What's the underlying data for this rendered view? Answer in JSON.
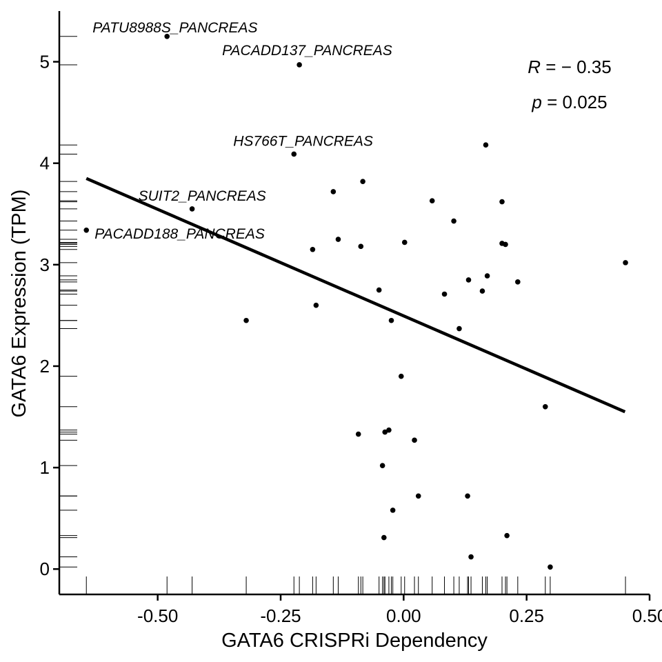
{
  "chart_data": {
    "type": "scatter",
    "xlabel": "GATA6 CRISPRi Dependency",
    "ylabel": "GATA6 Expression (TPM)",
    "xlim": [
      -0.7,
      0.5
    ],
    "ylim": [
      -0.25,
      5.5
    ],
    "x_ticks": [
      -0.5,
      -0.25,
      0.0,
      0.25,
      0.5
    ],
    "x_tick_labels": [
      "-0.50",
      "-0.25",
      "0.00",
      "0.25",
      "0.50"
    ],
    "y_ticks": [
      0,
      1,
      2,
      3,
      4,
      5
    ],
    "y_tick_labels": [
      "0",
      "1",
      "2",
      "3",
      "4",
      "5"
    ],
    "stats": {
      "r_label": "R",
      "r_value": " = − 0.35",
      "p_label": "p",
      "p_value": " = 0.025"
    },
    "regression": {
      "x": [
        -0.645,
        0.45
      ],
      "y": [
        3.85,
        1.55
      ]
    },
    "rug": {
      "x": true,
      "y": true
    },
    "points": [
      {
        "x": -0.481,
        "y": 5.25,
        "label": "PATU8988S_PANCREAS"
      },
      {
        "x": -0.212,
        "y": 4.97,
        "label": "PACADD137_PANCREAS"
      },
      {
        "x": -0.223,
        "y": 4.09,
        "label": "HS766T_PANCREAS"
      },
      {
        "x": -0.43,
        "y": 3.55,
        "label": "SUIT2_PANCREAS"
      },
      {
        "x": -0.645,
        "y": 3.34,
        "label": "PACADD188_PANCREAS"
      },
      {
        "x": -0.32,
        "y": 2.45
      },
      {
        "x": -0.185,
        "y": 3.15
      },
      {
        "x": -0.178,
        "y": 2.6
      },
      {
        "x": -0.143,
        "y": 3.72
      },
      {
        "x": -0.133,
        "y": 3.25
      },
      {
        "x": -0.092,
        "y": 1.33
      },
      {
        "x": -0.087,
        "y": 3.18
      },
      {
        "x": -0.083,
        "y": 3.82
      },
      {
        "x": -0.05,
        "y": 2.75
      },
      {
        "x": -0.043,
        "y": 1.02
      },
      {
        "x": -0.04,
        "y": 0.31
      },
      {
        "x": -0.038,
        "y": 1.35
      },
      {
        "x": -0.03,
        "y": 1.37
      },
      {
        "x": -0.025,
        "y": 2.45
      },
      {
        "x": -0.022,
        "y": 0.58
      },
      {
        "x": -0.005,
        "y": 1.9
      },
      {
        "x": 0.002,
        "y": 3.22
      },
      {
        "x": 0.022,
        "y": 1.27
      },
      {
        "x": 0.03,
        "y": 0.72
      },
      {
        "x": 0.058,
        "y": 3.63
      },
      {
        "x": 0.083,
        "y": 2.71
      },
      {
        "x": 0.102,
        "y": 3.43
      },
      {
        "x": 0.113,
        "y": 2.37
      },
      {
        "x": 0.13,
        "y": 0.72
      },
      {
        "x": 0.132,
        "y": 2.85
      },
      {
        "x": 0.137,
        "y": 0.12
      },
      {
        "x": 0.16,
        "y": 2.74
      },
      {
        "x": 0.167,
        "y": 4.18
      },
      {
        "x": 0.17,
        "y": 2.89
      },
      {
        "x": 0.2,
        "y": 3.62
      },
      {
        "x": 0.2,
        "y": 3.21
      },
      {
        "x": 0.207,
        "y": 3.2
      },
      {
        "x": 0.21,
        "y": 0.33
      },
      {
        "x": 0.232,
        "y": 2.83
      },
      {
        "x": 0.288,
        "y": 1.6
      },
      {
        "x": 0.298,
        "y": 0.02
      },
      {
        "x": 0.451,
        "y": 3.02
      }
    ]
  }
}
